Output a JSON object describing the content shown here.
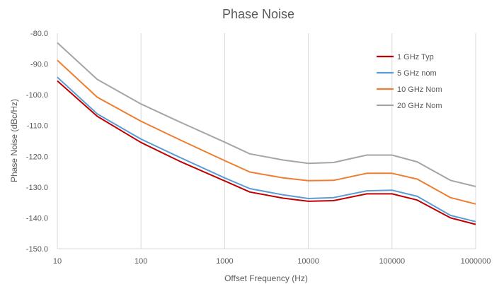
{
  "chart_data": {
    "type": "line",
    "title": "Phase Noise",
    "xlabel": "Offset Frequency (Hz)",
    "ylabel": "Phase Noise (dBc/Hz)",
    "x_scale": "log",
    "xlim": [
      10,
      1000000
    ],
    "ylim": [
      -150,
      -80
    ],
    "x_ticks": [
      10,
      100,
      1000,
      10000,
      100000,
      1000000
    ],
    "x_tick_labels": [
      "10",
      "100",
      "1000",
      "10000",
      "100000",
      "1000000"
    ],
    "y_ticks": [
      -80,
      -90,
      -100,
      -110,
      -120,
      -130,
      -140,
      -150
    ],
    "y_tick_labels": [
      "-80.0",
      "-90.0",
      "-100.0",
      "-110.0",
      "-120.0",
      "-130.0",
      "-140.0",
      "-150.0"
    ],
    "grid": "vertical",
    "legend_position": "top-right",
    "x": [
      10,
      30,
      100,
      300,
      1000,
      2000,
      5000,
      10000,
      20000,
      50000,
      100000,
      200000,
      500000,
      1000000
    ],
    "series": [
      {
        "name": "1 GHz Typ",
        "color": "#c00000",
        "values": [
          -95.5,
          -107,
          -115.5,
          -121.8,
          -128,
          -131.6,
          -133.6,
          -134.6,
          -134.4,
          -132.2,
          -132.2,
          -134.2,
          -140,
          -142.1
        ]
      },
      {
        "name": "5 GHz nom",
        "color": "#5b9bd5",
        "values": [
          -94.3,
          -106.2,
          -114.4,
          -120.5,
          -127,
          -130.5,
          -132.5,
          -133.7,
          -133.4,
          -131.2,
          -131,
          -133,
          -139.2,
          -141.2
        ]
      },
      {
        "name": "10 GHz Nom",
        "color": "#ed7d31",
        "values": [
          -88.8,
          -100.8,
          -108.6,
          -114.8,
          -121.4,
          -125.1,
          -127,
          -127.9,
          -127.8,
          -125.5,
          -125.5,
          -127.4,
          -133.4,
          -135.5
        ]
      },
      {
        "name": "20 GHz Nom",
        "color": "#a5a5a5",
        "values": [
          -83.1,
          -95,
          -103,
          -109,
          -115.4,
          -119.2,
          -121.2,
          -122.3,
          -122,
          -119.6,
          -119.6,
          -121.8,
          -127.8,
          -129.8
        ]
      }
    ]
  }
}
